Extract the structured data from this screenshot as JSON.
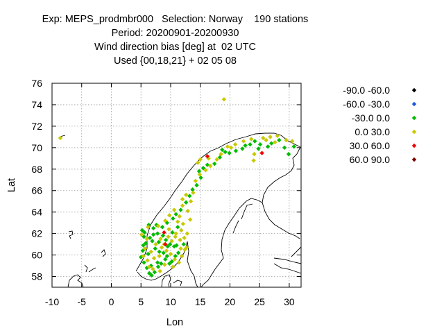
{
  "title_lines": [
    "Exp: MEPS_prodmbr000   Selection: Norway    190 stations",
    "Period: 20200901-20200930",
    "Wind direction bias [deg] at  02 UTC",
    "Used {00,18,21} + 02 05 08"
  ],
  "chart_data": {
    "type": "scatter",
    "title": "Exp: MEPS_prodmbr000   Selection: Norway    190 stations",
    "xlabel": "Lon",
    "ylabel": "Lat",
    "xlim": [
      -10,
      32
    ],
    "ylim": [
      57,
      76
    ],
    "xticks": [
      -10,
      -5,
      0,
      5,
      10,
      15,
      20,
      25,
      30
    ],
    "yticks": [
      58,
      60,
      62,
      64,
      66,
      68,
      70,
      72,
      74,
      76
    ],
    "grid": true,
    "legend_position": "right",
    "series": [
      {
        "name": "-90.0 -60.0",
        "color": "#000000",
        "points": []
      },
      {
        "name": "-60.0 -30.0",
        "color": "#2255dd",
        "points": []
      },
      {
        "name": "-30.0 0.0",
        "color": "#00bb00",
        "points": [
          [
            5.2,
            62.3
          ],
          [
            5.5,
            61.7
          ],
          [
            5.4,
            60.9
          ],
          [
            5.3,
            60.4
          ],
          [
            5.0,
            59.8
          ],
          [
            5.5,
            59.3
          ],
          [
            6.0,
            58.8
          ],
          [
            6.4,
            58.3
          ],
          [
            6.8,
            58.1
          ],
          [
            7.3,
            58.4
          ],
          [
            7.9,
            58.9
          ],
          [
            8.4,
            59.2
          ],
          [
            9.1,
            59.6
          ],
          [
            9.4,
            59.9
          ],
          [
            10.2,
            59.4
          ],
          [
            10.8,
            59.9
          ],
          [
            11.3,
            60.2
          ],
          [
            10.6,
            60.8
          ],
          [
            9.9,
            61.0
          ],
          [
            9.2,
            61.4
          ],
          [
            8.7,
            61.8
          ],
          [
            7.8,
            62.0
          ],
          [
            7.1,
            62.5
          ],
          [
            6.3,
            62.8
          ],
          [
            6.9,
            61.3
          ],
          [
            7.4,
            60.6
          ],
          [
            8.1,
            60.3
          ],
          [
            6.2,
            60.1
          ],
          [
            5.8,
            61.1
          ],
          [
            8.6,
            62.6
          ],
          [
            9.4,
            63.0
          ],
          [
            10.4,
            63.4
          ],
          [
            10.9,
            63.8
          ],
          [
            11.7,
            64.2
          ],
          [
            12.6,
            64.9
          ],
          [
            13.2,
            65.5
          ],
          [
            13.7,
            66.1
          ],
          [
            14.4,
            66.5
          ],
          [
            15.1,
            67.2
          ],
          [
            14.8,
            67.8
          ],
          [
            15.5,
            68.1
          ],
          [
            16.2,
            68.4
          ],
          [
            17.4,
            68.5
          ],
          [
            18.3,
            69.1
          ],
          [
            19.2,
            69.6
          ],
          [
            19.9,
            69.5
          ],
          [
            21.0,
            69.7
          ],
          [
            22.1,
            69.9
          ],
          [
            23.4,
            70.3
          ],
          [
            24.2,
            70.6
          ],
          [
            25.1,
            70.3
          ],
          [
            26.4,
            70.1
          ],
          [
            27.0,
            70.4
          ],
          [
            28.3,
            70.7
          ],
          [
            29.2,
            70.0
          ],
          [
            29.9,
            69.4
          ],
          [
            30.8,
            70.1
          ],
          [
            24.8,
            69.9
          ],
          [
            22.6,
            70.2
          ],
          [
            18.7,
            69.8
          ],
          [
            6.7,
            59.0
          ],
          [
            7.8,
            59.3
          ],
          [
            9.5,
            60.8
          ],
          [
            8.0,
            61.2
          ],
          [
            10.3,
            62.1
          ],
          [
            11.2,
            62.6
          ],
          [
            12.2,
            61.0
          ],
          [
            7.1,
            61.9
          ],
          [
            9.8,
            59.2
          ],
          [
            11.0,
            60.9
          ],
          [
            5.6,
            62.1
          ],
          [
            7.6,
            62.8
          ],
          [
            6.5,
            61.6
          ],
          [
            8.8,
            60.2
          ]
        ]
      },
      {
        "name": "0.0 30.0",
        "color": "#c8c800",
        "points": [
          [
            -8.6,
            70.9
          ],
          [
            19.0,
            74.5
          ],
          [
            5.1,
            61.9
          ],
          [
            5.7,
            60.6
          ],
          [
            6.1,
            59.5
          ],
          [
            7.0,
            58.7
          ],
          [
            8.2,
            58.5
          ],
          [
            9.0,
            59.1
          ],
          [
            10.0,
            60.1
          ],
          [
            10.7,
            59.6
          ],
          [
            11.9,
            59.9
          ],
          [
            12.4,
            60.5
          ],
          [
            11.6,
            61.4
          ],
          [
            10.9,
            62.0
          ],
          [
            9.7,
            62.4
          ],
          [
            8.3,
            61.5
          ],
          [
            7.5,
            61.0
          ],
          [
            6.7,
            60.3
          ],
          [
            9.3,
            60.4
          ],
          [
            8.9,
            61.0
          ],
          [
            10.2,
            61.3
          ],
          [
            11.8,
            62.3
          ],
          [
            12.1,
            62.9
          ],
          [
            11.5,
            63.6
          ],
          [
            12.9,
            64.1
          ],
          [
            12.0,
            64.6
          ],
          [
            13.4,
            65.0
          ],
          [
            12.6,
            65.6
          ],
          [
            13.8,
            65.8
          ],
          [
            14.2,
            66.9
          ],
          [
            14.9,
            67.5
          ],
          [
            15.9,
            67.9
          ],
          [
            16.7,
            68.3
          ],
          [
            17.8,
            68.9
          ],
          [
            18.5,
            69.4
          ],
          [
            19.6,
            70.1
          ],
          [
            20.9,
            70.3
          ],
          [
            22.3,
            70.6
          ],
          [
            23.6,
            70.8
          ],
          [
            24.1,
            69.4
          ],
          [
            24.0,
            68.8
          ],
          [
            25.6,
            70.9
          ],
          [
            26.8,
            71.0
          ],
          [
            28.0,
            71.1
          ],
          [
            29.5,
            70.7
          ],
          [
            30.5,
            70.6
          ],
          [
            27.6,
            70.5
          ],
          [
            16.4,
            69.0
          ],
          [
            15.0,
            68.9
          ],
          [
            13.3,
            63.3
          ],
          [
            6.2,
            62.6
          ],
          [
            7.9,
            62.7
          ],
          [
            9.1,
            63.2
          ],
          [
            10.6,
            64.2
          ],
          [
            11.2,
            63.1
          ],
          [
            12.8,
            62.0
          ],
          [
            12.3,
            61.6
          ],
          [
            9.6,
            61.7
          ],
          [
            8.5,
            60.7
          ],
          [
            7.2,
            59.7
          ],
          [
            6.4,
            58.9
          ],
          [
            11.4,
            59.3
          ],
          [
            10.4,
            58.9
          ],
          [
            12.7,
            60.7
          ],
          [
            5.4,
            59.9
          ],
          [
            6.0,
            61.5
          ],
          [
            8.1,
            59.9
          ],
          [
            9.8,
            63.7
          ],
          [
            14.6,
            68.6
          ],
          [
            20.2,
            70.0
          ],
          [
            26.1,
            70.7
          ],
          [
            10.8,
            61.7
          ],
          [
            11.7,
            60.6
          ],
          [
            12.0,
            65.2
          ]
        ]
      },
      {
        "name": "30.0 60.0",
        "color": "#ee0000",
        "points": [
          [
            16.2,
            69.2
          ],
          [
            25.4,
            69.5
          ],
          [
            8.9,
            62.1
          ],
          [
            9.1,
            61.0
          ]
        ]
      },
      {
        "name": "60.0 90.0",
        "color": "#7a0000",
        "points": []
      }
    ]
  }
}
